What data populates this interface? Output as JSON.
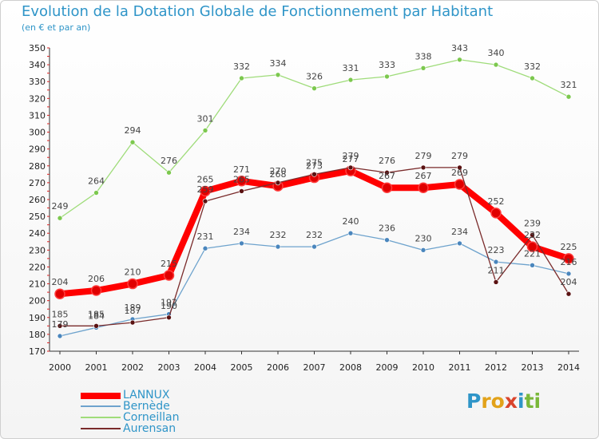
{
  "title": "Evolution de la Dotation Globale de Fonctionnement par Habitant",
  "subtitle": "(en € et par an)",
  "logo": {
    "letters": [
      {
        "ch": "P",
        "color": "#2f95c8"
      },
      {
        "ch": "r",
        "color": "#e2a21a"
      },
      {
        "ch": "o",
        "color": "#e2a21a"
      },
      {
        "ch": "x",
        "color": "#d9442c"
      },
      {
        "ch": "i",
        "color": "#2f95c8"
      },
      {
        "ch": "t",
        "color": "#7ab83a"
      },
      {
        "ch": "i",
        "color": "#7ab83a"
      }
    ]
  },
  "chart_data": {
    "type": "line",
    "title": "Evolution de la Dotation Globale de Fonctionnement par Habitant",
    "subtitle": "(en € et par an)",
    "x": [
      "2000",
      "2001",
      "2002",
      "2003",
      "2004",
      "2005",
      "2006",
      "2007",
      "2008",
      "2009",
      "2010",
      "2011",
      "2012",
      "2013",
      "2014"
    ],
    "ylim": [
      170,
      350
    ],
    "yticks": [
      170,
      180,
      190,
      200,
      210,
      220,
      230,
      240,
      250,
      260,
      270,
      280,
      290,
      300,
      310,
      320,
      330,
      340,
      350
    ],
    "grid": false,
    "legend_position": "bottom-left",
    "series": [
      {
        "name": "LANNUX",
        "color": "#ff0000",
        "point_color": "#e00000",
        "width": 8,
        "values": [
          204,
          206,
          210,
          215,
          265,
          271,
          268,
          273,
          277,
          267,
          267,
          269,
          252,
          232,
          225
        ],
        "labels": [
          "204",
          "206",
          "210",
          "215",
          "265",
          "271",
          "268",
          "273",
          "277",
          "267",
          "267",
          "269",
          "252",
          "232",
          "225"
        ]
      },
      {
        "name": "Bernède",
        "color": "#6ea3cd",
        "point_color": "#4a86bd",
        "width": 1.3,
        "values": [
          179,
          184,
          189,
          192,
          231,
          234,
          232,
          232,
          240,
          236,
          230,
          234,
          223,
          221,
          216
        ],
        "labels": [
          "179",
          "184",
          "189",
          "192",
          "231",
          "234",
          "232",
          "232",
          "240",
          "236",
          "230",
          "234",
          "223",
          "221",
          "216"
        ]
      },
      {
        "name": "Corneillan",
        "color": "#9fdc7a",
        "point_color": "#7cc84e",
        "width": 1.3,
        "values": [
          249,
          264,
          294,
          276,
          301,
          332,
          334,
          326,
          331,
          333,
          338,
          343,
          340,
          332,
          321
        ],
        "labels": [
          "249",
          "264",
          "294",
          "276",
          "301",
          "332",
          "334",
          "326",
          "331",
          "333",
          "338",
          "343",
          "340",
          "332",
          "321"
        ]
      },
      {
        "name": "Aurensan",
        "color": "#7a2b2b",
        "point_color": "#5a1212",
        "width": 1.3,
        "values": [
          185,
          185,
          187,
          190,
          259,
          265,
          270,
          275,
          279,
          276,
          279,
          279,
          211,
          239,
          204
        ],
        "labels": [
          "185",
          "185",
          "187",
          "190",
          "259",
          "265",
          "270",
          "275",
          "279",
          "276",
          "279",
          "279",
          "211",
          "239",
          "204"
        ]
      }
    ]
  }
}
